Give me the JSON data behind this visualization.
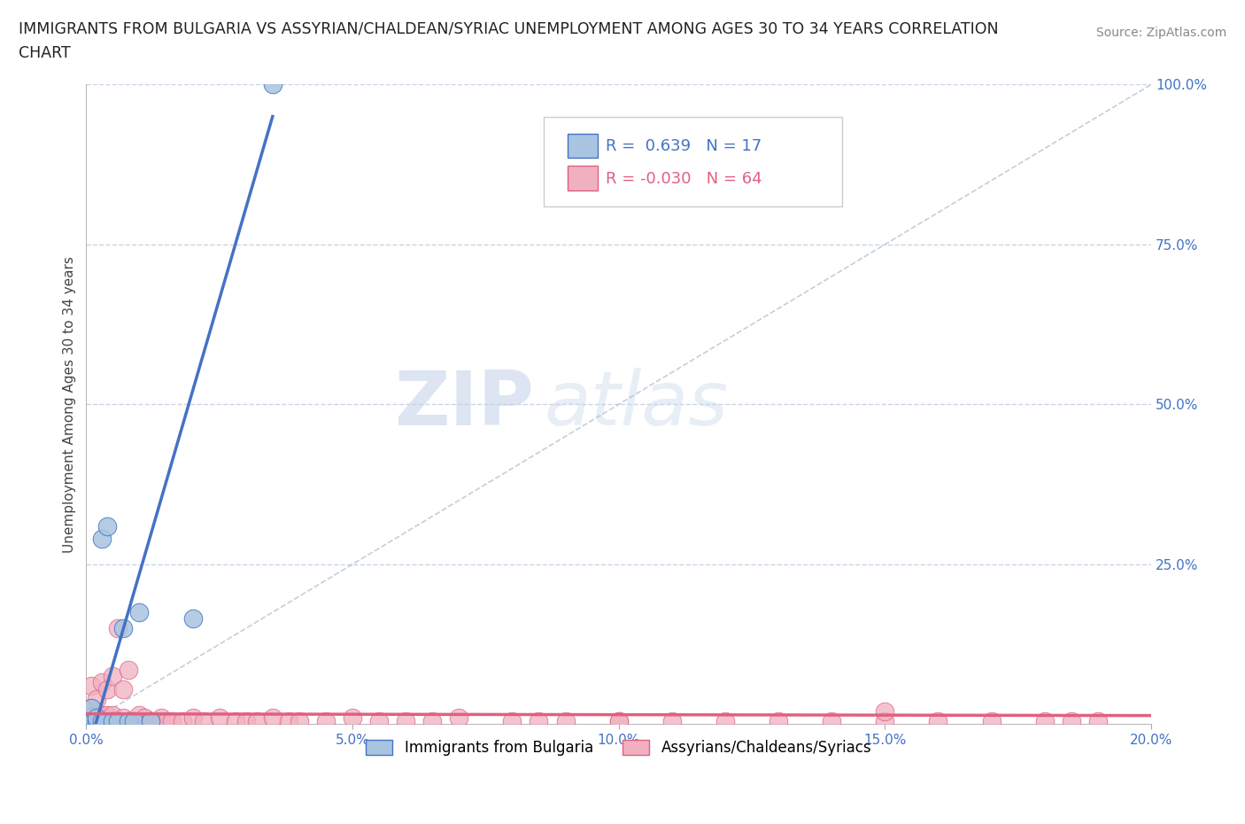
{
  "title_line1": "IMMIGRANTS FROM BULGARIA VS ASSYRIAN/CHALDEAN/SYRIAC UNEMPLOYMENT AMONG AGES 30 TO 34 YEARS CORRELATION",
  "title_line2": "CHART",
  "source": "Source: ZipAtlas.com",
  "ylabel": "Unemployment Among Ages 30 to 34 years",
  "xlim": [
    0.0,
    0.2
  ],
  "ylim": [
    0.0,
    1.0
  ],
  "xticks": [
    0.0,
    0.05,
    0.1,
    0.15,
    0.2
  ],
  "xticklabels": [
    "0.0%",
    "5.0%",
    "10.0%",
    "15.0%",
    "20.0%"
  ],
  "yticks": [
    0.0,
    0.25,
    0.5,
    0.75,
    1.0
  ],
  "yticklabels_right": [
    "",
    "25.0%",
    "50.0%",
    "75.0%",
    "100.0%"
  ],
  "legend1_label": "Immigrants from Bulgaria",
  "legend2_label": "Assyrians/Chaldeans/Syriacs",
  "r1": 0.639,
  "n1": 17,
  "r2": -0.03,
  "n2": 64,
  "color_blue": "#a8c4e0",
  "color_pink": "#f0b0c0",
  "line_blue": "#4472c4",
  "line_pink": "#e06080",
  "watermark_zip": "ZIP",
  "watermark_atlas": "atlas",
  "bg_color": "#ffffff",
  "grid_color": "#c8d4e8",
  "bulgaria_x": [
    0.001,
    0.001,
    0.001,
    0.002,
    0.002,
    0.003,
    0.003,
    0.004,
    0.005,
    0.006,
    0.007,
    0.008,
    0.009,
    0.01,
    0.012,
    0.02,
    0.035
  ],
  "bulgaria_y": [
    0.005,
    0.012,
    0.025,
    0.005,
    0.01,
    0.005,
    0.29,
    0.31,
    0.005,
    0.005,
    0.15,
    0.005,
    0.005,
    0.175,
    0.005,
    0.165,
    1.0
  ],
  "assyrian_x": [
    0.001,
    0.001,
    0.001,
    0.001,
    0.002,
    0.002,
    0.002,
    0.003,
    0.003,
    0.003,
    0.004,
    0.004,
    0.004,
    0.005,
    0.005,
    0.005,
    0.006,
    0.006,
    0.007,
    0.007,
    0.008,
    0.009,
    0.01,
    0.01,
    0.011,
    0.012,
    0.013,
    0.014,
    0.015,
    0.016,
    0.018,
    0.02,
    0.022,
    0.025,
    0.028,
    0.03,
    0.032,
    0.035,
    0.038,
    0.04,
    0.045,
    0.05,
    0.055,
    0.06,
    0.065,
    0.07,
    0.08,
    0.085,
    0.09,
    0.1,
    0.11,
    0.12,
    0.13,
    0.14,
    0.15,
    0.16,
    0.17,
    0.18,
    0.185,
    0.19,
    0.008,
    0.012,
    0.1,
    0.15
  ],
  "assyrian_y": [
    0.005,
    0.015,
    0.025,
    0.06,
    0.005,
    0.015,
    0.04,
    0.005,
    0.015,
    0.065,
    0.005,
    0.015,
    0.055,
    0.005,
    0.015,
    0.075,
    0.005,
    0.15,
    0.01,
    0.055,
    0.005,
    0.005,
    0.005,
    0.015,
    0.01,
    0.005,
    0.005,
    0.01,
    0.005,
    0.005,
    0.005,
    0.01,
    0.005,
    0.01,
    0.005,
    0.005,
    0.005,
    0.01,
    0.005,
    0.005,
    0.005,
    0.01,
    0.005,
    0.005,
    0.005,
    0.01,
    0.005,
    0.005,
    0.005,
    0.005,
    0.005,
    0.005,
    0.005,
    0.005,
    0.005,
    0.005,
    0.005,
    0.005,
    0.005,
    0.005,
    0.085,
    0.005,
    0.005,
    0.02
  ]
}
